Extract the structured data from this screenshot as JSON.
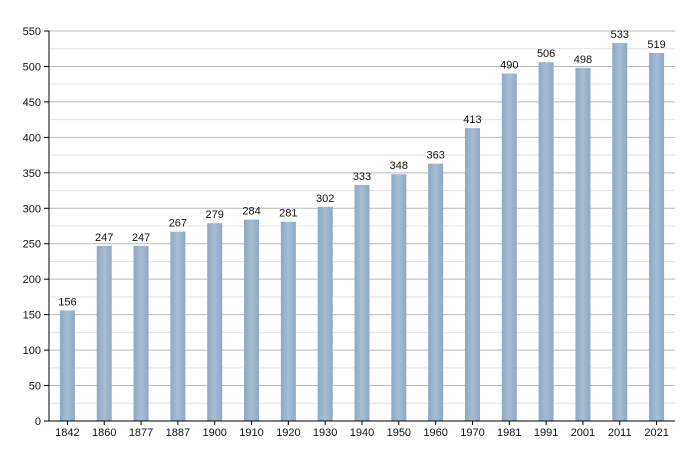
{
  "chart_data": {
    "type": "bar",
    "title": "",
    "xlabel": "",
    "ylabel": "",
    "categories": [
      "1842",
      "1860",
      "1877",
      "1887",
      "1900",
      "1910",
      "1920",
      "1930",
      "1940",
      "1950",
      "1960",
      "1970",
      "1981",
      "1991",
      "2001",
      "2011",
      "2021"
    ],
    "values": [
      156,
      247,
      247,
      267,
      279,
      284,
      281,
      302,
      333,
      348,
      363,
      413,
      490,
      506,
      498,
      533,
      519
    ],
    "ylim": [
      0,
      550
    ],
    "yticks": [
      "0",
      "50",
      "100",
      "150",
      "200",
      "250",
      "300",
      "350",
      "400",
      "450",
      "500",
      "550"
    ],
    "grid": true,
    "legend": "none",
    "colors": {
      "bar": "#9db3cc",
      "grid_major": "#b9b9b9",
      "grid_minor": "#e3e3e3",
      "axis": "#000000"
    }
  }
}
